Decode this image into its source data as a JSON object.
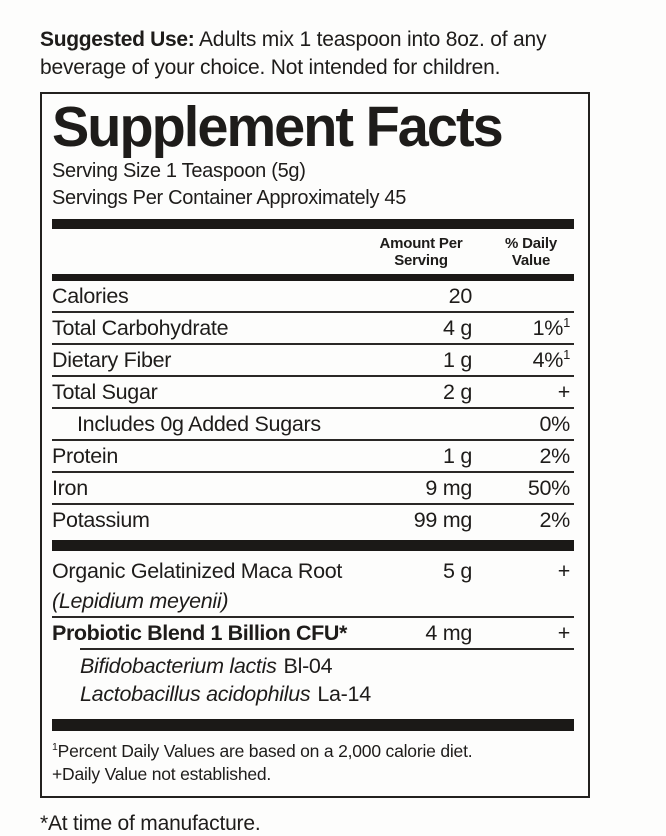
{
  "suggested_use": {
    "label": "Suggested Use:",
    "text": " Adults mix 1 teaspoon into 8oz. of any beverage of your choice. Not intended for children."
  },
  "panel": {
    "title": "Supplement Facts",
    "serving_size": "Serving Size 1 Teaspoon (5g)",
    "servings_per_container": "Servings Per Container Approximately 45",
    "columns": {
      "amount": "Amount Per Serving",
      "daily": "% Daily Value"
    },
    "rows": [
      {
        "name": "Calories",
        "amount": "20",
        "dv": ""
      },
      {
        "name": "Total Carbohydrate",
        "amount": "4 g",
        "dv": "1%",
        "dv_sup": "1"
      },
      {
        "name": "Dietary Fiber",
        "amount": "1 g",
        "dv": "4%",
        "dv_sup": "1"
      },
      {
        "name": "Total Sugar",
        "amount": "2 g",
        "dv": "+"
      },
      {
        "name": "Includes 0g Added Sugars",
        "amount": "",
        "dv": "0%"
      },
      {
        "name": "Protein",
        "amount": "1 g",
        "dv": "2%"
      },
      {
        "name": "Iron",
        "amount": "9 mg",
        "dv": "50%"
      },
      {
        "name": "Potassium",
        "amount": "99 mg",
        "dv": "2%"
      }
    ],
    "maca": {
      "name": "Organic Gelatinized Maca Root",
      "latin": "(Lepidium meyenii)",
      "amount": "5 g",
      "dv": "+"
    },
    "probiotic": {
      "name": "Probiotic Blend 1 Billion CFU*",
      "amount": "4 mg",
      "dv": "+",
      "species": [
        {
          "latin": "Bifidobacterium lactis",
          "strain": "Bl-04"
        },
        {
          "latin": "Lactobacillus acidophilus",
          "strain": "La-14"
        }
      ]
    },
    "footnotes": {
      "percent_sup": "1",
      "percent_text": "Percent Daily Values are based on a 2,000 calorie diet.",
      "plus_text": "+Daily Value not established."
    }
  },
  "footer_note": "*At time of manufacture."
}
